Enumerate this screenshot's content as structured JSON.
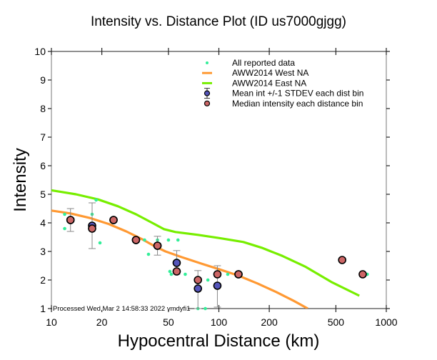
{
  "chart_data": {
    "type": "scatter",
    "title": "Intensity vs. Distance Plot (ID us7000gjgg)",
    "xlabel": "Hypocentral Distance (km)",
    "ylabel": "Intensity",
    "xscale": "log",
    "xlim": [
      10,
      1000
    ],
    "ylim": [
      1,
      10
    ],
    "xticks": [
      10,
      20,
      50,
      100,
      200,
      500,
      1000
    ],
    "xtick_labels": [
      "10",
      "20",
      "50",
      "100",
      "200",
      "500",
      "1000"
    ],
    "yticks": [
      1,
      2,
      3,
      4,
      5,
      6,
      7,
      8,
      9,
      10
    ],
    "ytick_labels": [
      "1",
      "2",
      "3",
      "4",
      "5",
      "6",
      "7",
      "8",
      "9",
      "10"
    ],
    "grid": false,
    "legend_position": "top-right",
    "footnote": "Processed Wed Mar  2 14:58:33 2022 vmdyfi1",
    "colors": {
      "all_data": "#33ee99",
      "west": "#ff9933",
      "east": "#77ee00",
      "mean": "#5555bb",
      "median": "#cc6666",
      "errorbar": "#888888"
    },
    "legend": [
      {
        "key": "all_data",
        "label": "All reported data",
        "marker": "dot"
      },
      {
        "key": "west",
        "label": "AWW2014 West NA",
        "marker": "line"
      },
      {
        "key": "east",
        "label": "AWW2014 East NA",
        "marker": "line"
      },
      {
        "key": "mean",
        "label": "Mean int +/-1 STDEV each dist bin",
        "marker": "circle-errorbar"
      },
      {
        "key": "median",
        "label": "Median intensity each distance bin",
        "marker": "circle"
      }
    ],
    "series": [
      {
        "name": "All reported data",
        "key": "all_data",
        "type": "scatter",
        "points": [
          [
            12,
            3.8
          ],
          [
            12,
            4.3
          ],
          [
            17.5,
            4.3
          ],
          [
            18.5,
            4.8
          ],
          [
            19.5,
            3.3
          ],
          [
            36,
            3.4
          ],
          [
            38,
            2.9
          ],
          [
            43,
            3.4
          ],
          [
            50,
            3.4
          ],
          [
            51,
            2.3
          ],
          [
            52,
            2.2
          ],
          [
            56,
            2.7
          ],
          [
            57,
            3.4
          ],
          [
            63,
            2.2
          ],
          [
            75,
            1.0
          ],
          [
            83,
            1.0
          ],
          [
            86,
            2.0
          ],
          [
            99,
            2.2
          ],
          [
            113,
            2.2
          ],
          [
            770,
            2.2
          ]
        ]
      },
      {
        "name": "AWW2014 West NA",
        "key": "west",
        "type": "line",
        "points": [
          [
            10,
            4.43
          ],
          [
            13,
            4.33
          ],
          [
            17,
            4.17
          ],
          [
            22,
            3.96
          ],
          [
            28,
            3.7
          ],
          [
            35,
            3.42
          ],
          [
            42,
            3.16
          ],
          [
            48,
            3.0
          ],
          [
            60,
            2.8
          ],
          [
            80,
            2.56
          ],
          [
            100,
            2.38
          ],
          [
            130,
            2.16
          ],
          [
            170,
            1.88
          ],
          [
            220,
            1.58
          ],
          [
            280,
            1.27
          ],
          [
            340,
            1.0
          ]
        ]
      },
      {
        "name": "AWW2014 East NA",
        "key": "east",
        "type": "line",
        "points": [
          [
            10,
            5.14
          ],
          [
            14,
            5.0
          ],
          [
            19,
            4.82
          ],
          [
            25,
            4.58
          ],
          [
            32,
            4.3
          ],
          [
            40,
            4.0
          ],
          [
            47,
            3.78
          ],
          [
            55,
            3.68
          ],
          [
            75,
            3.58
          ],
          [
            100,
            3.47
          ],
          [
            140,
            3.33
          ],
          [
            180,
            3.13
          ],
          [
            240,
            2.84
          ],
          [
            330,
            2.46
          ],
          [
            470,
            1.93
          ],
          [
            690,
            1.45
          ]
        ]
      },
      {
        "name": "Mean int +/-1 STDEV each dist bin",
        "key": "mean",
        "type": "errorbar",
        "points": [
          {
            "x": 13,
            "y": 4.1,
            "lo": 3.7,
            "hi": 4.5
          },
          {
            "x": 17.5,
            "y": 3.9,
            "lo": 3.1,
            "hi": 4.7
          },
          {
            "x": 23.5,
            "y": 4.1,
            "lo": 4.1,
            "hi": 4.1
          },
          {
            "x": 32,
            "y": 3.4,
            "lo": 3.4,
            "hi": 3.4
          },
          {
            "x": 43,
            "y": 3.2,
            "lo": 2.87,
            "hi": 3.53
          },
          {
            "x": 56,
            "y": 2.6,
            "lo": 2.2,
            "hi": 3.03
          },
          {
            "x": 75,
            "y": 1.7,
            "lo": 1.0,
            "hi": 2.33
          },
          {
            "x": 98,
            "y": 1.8,
            "lo": 1.05,
            "hi": 2.5
          },
          {
            "x": 131,
            "y": 2.2,
            "lo": 2.2,
            "hi": 2.2
          }
        ]
      },
      {
        "name": "Median intensity each distance bin",
        "key": "median",
        "type": "scatter",
        "points": [
          [
            13,
            4.1
          ],
          [
            17.5,
            3.8
          ],
          [
            23.5,
            4.1
          ],
          [
            32,
            3.4
          ],
          [
            43,
            3.2
          ],
          [
            56,
            2.3
          ],
          [
            75,
            2.0
          ],
          [
            98,
            2.2
          ],
          [
            131,
            2.2
          ],
          [
            545,
            2.7
          ],
          [
            723,
            2.2
          ]
        ]
      }
    ]
  }
}
